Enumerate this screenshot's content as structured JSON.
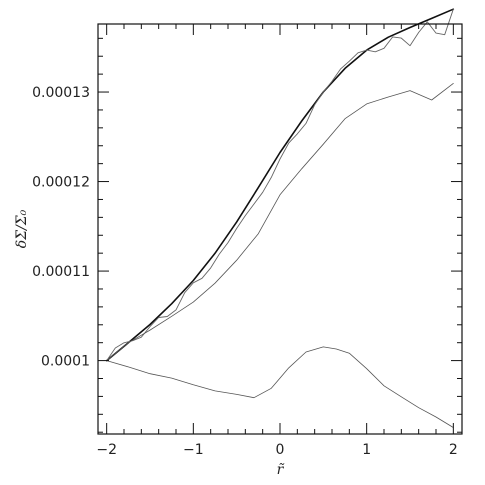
{
  "chart_data": {
    "type": "line",
    "title": "",
    "xlabel": "r̃",
    "ylabel": "δΣ/Σ₀",
    "xlim": [
      -2.1,
      2.1
    ],
    "ylim": [
      9.18e-05,
      0.0001376
    ],
    "grid": false,
    "x_ticks": [
      -2,
      -1,
      0,
      1,
      2
    ],
    "x_tick_labels": [
      "−2",
      "−1",
      "0",
      "1",
      "2"
    ],
    "y_ticks": [
      0.0001,
      0.00011,
      0.00012,
      0.00013
    ],
    "y_tick_labels": [
      "0.0001",
      "0.00011",
      "0.00012",
      "0.00013"
    ],
    "series": [
      {
        "color": "#111111",
        "width": 1.6,
        "x": [
          -2,
          -1.75,
          -1.5,
          -1.25,
          -1,
          -0.75,
          -0.5,
          -0.25,
          0,
          0.25,
          0.5,
          0.75,
          1,
          1.25,
          1.5,
          1.75,
          2
        ],
        "y": [
          0.0001,
          0.00010199,
          0.00010403,
          0.00010635,
          0.00010895,
          0.00011198,
          0.00011549,
          0.00011932,
          0.00012325,
          0.00012676,
          0.00013,
          0.00013264,
          0.00013469,
          0.00013613,
          0.00013721,
          0.00013823,
          0.00013925
        ]
      },
      {
        "color": "#666666",
        "width": 0.9,
        "x": [
          -2,
          -1.9,
          -1.8,
          -1.7,
          -1.6,
          -1.5,
          -1.4,
          -1.3,
          -1.2,
          -1.1,
          -1,
          -0.9,
          -0.8,
          -0.7,
          -0.6,
          -0.5,
          -0.4,
          -0.3,
          -0.2,
          -0.1,
          0,
          0.1,
          0.2,
          0.3,
          0.4,
          0.5,
          0.6,
          0.7,
          0.8,
          0.9,
          1,
          1.1,
          1.2,
          1.3,
          1.4,
          1.5,
          1.6,
          1.7,
          1.8,
          1.9,
          2
        ],
        "y": [
          0.0001,
          0.00010141,
          0.00010199,
          0.00010222,
          0.00010261,
          0.0001038,
          0.00010481,
          0.00010493,
          0.00010566,
          0.00010758,
          0.00010869,
          0.00010919,
          0.00011035,
          0.0001119,
          0.00011318,
          0.00011477,
          0.0001162,
          0.00011749,
          0.0001188,
          0.00012046,
          0.00012252,
          0.0001243,
          0.00012532,
          0.0001265,
          0.00012859,
          0.00013,
          0.0001312,
          0.0001326,
          0.00013345,
          0.00013438,
          0.00013468,
          0.0001345,
          0.00013488,
          0.00013616,
          0.00013602,
          0.00013518,
          0.00013666,
          0.00013785,
          0.00013658,
          0.00013641,
          0.00013925
        ]
      },
      {
        "color": "#555555",
        "width": 0.8,
        "x": [
          -2,
          -1.75,
          -1.5,
          -1.25,
          -1,
          -0.75,
          -0.5,
          -0.25,
          0,
          0.25,
          0.5,
          0.75,
          1,
          1.25,
          1.5,
          1.75,
          2
        ],
        "y": [
          0.0001,
          0.00010199,
          0.00010341,
          0.00010495,
          0.00010653,
          0.00010865,
          0.00011121,
          0.00011417,
          0.00011852,
          0.00012142,
          0.00012417,
          0.00012702,
          0.00012868,
          0.00012945,
          0.00013016,
          0.00012911,
          0.00013097
        ]
      },
      {
        "color": "#555555",
        "width": 0.8,
        "x": [
          -2,
          -1.75,
          -1.5,
          -1.25,
          -1,
          -0.75,
          -0.5,
          -0.3,
          -0.1,
          0.1,
          0.3,
          0.5,
          0.65,
          0.8,
          1,
          1.2,
          1.4,
          1.6,
          1.8,
          2
        ],
        "y": [
          0.0001,
          9.93e-05,
          9.854e-05,
          9.805e-05,
          9.73e-05,
          9.662e-05,
          9.622e-05,
          9.585e-05,
          9.69e-05,
          9.918e-05,
          0.00010096,
          0.00010153,
          0.00010129,
          0.00010083,
          9.909e-05,
          9.718e-05,
          9.595e-05,
          9.474e-05,
          9.37e-05,
          9.253e-05
        ]
      }
    ]
  }
}
